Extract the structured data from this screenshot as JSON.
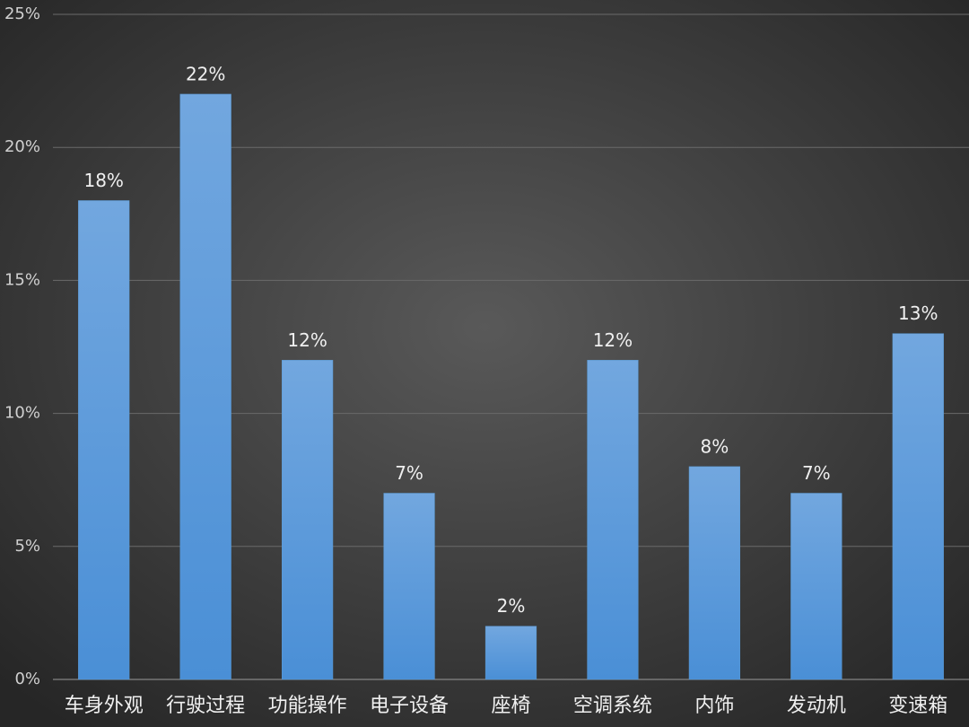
{
  "chart_data": {
    "type": "bar",
    "categories": [
      "车身外观",
      "行驶过程",
      "功能操作",
      "电子设备",
      "座椅",
      "空调系统",
      "内饰",
      "发动机",
      "变速箱"
    ],
    "values": [
      18,
      22,
      12,
      7,
      2,
      12,
      8,
      7,
      13
    ],
    "value_labels": [
      "18%",
      "22%",
      "12%",
      "7%",
      "2%",
      "12%",
      "8%",
      "7%",
      "13%"
    ],
    "color": "#5b9bd5",
    "ylim": [
      0,
      25
    ],
    "yticks": [
      {
        "value": 0,
        "label": "0%"
      },
      {
        "value": 5,
        "label": "5%"
      },
      {
        "value": 10,
        "label": "10%"
      },
      {
        "value": 15,
        "label": "15%"
      },
      {
        "value": 20,
        "label": "20%"
      },
      {
        "value": 25,
        "label": "25%"
      }
    ],
    "grid": true
  }
}
